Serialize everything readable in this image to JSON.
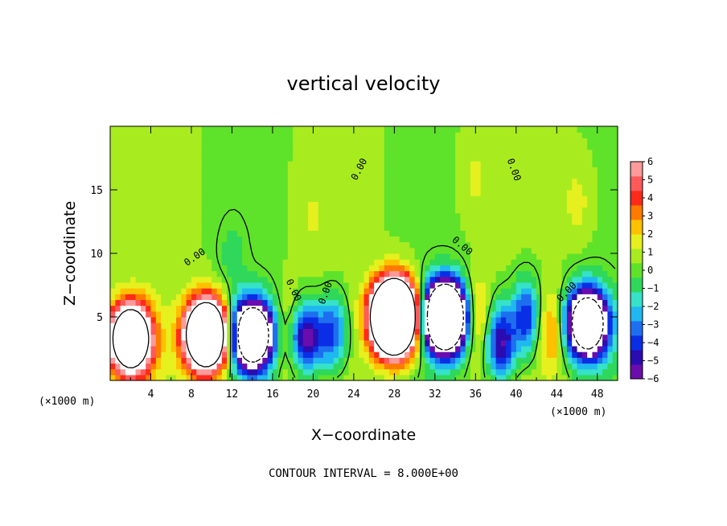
{
  "chart_data": {
    "type": "heatmap",
    "title": "vertical velocity",
    "xlabel": "X−coordinate",
    "ylabel": "Z−coordinate",
    "x_unit_label_left": "(×1000 m)",
    "x_unit_label_right": "(×1000 m)",
    "footer": "CONTOUR INTERVAL = 8.000E+00",
    "xlim": [
      0,
      50
    ],
    "ylim": [
      0,
      20
    ],
    "x_ticks": [
      4,
      8,
      12,
      16,
      20,
      24,
      28,
      32,
      36,
      40,
      44,
      48
    ],
    "x_tick_labels": [
      "4",
      "8",
      "12",
      "16",
      "20",
      "24",
      "28",
      "32",
      "36",
      "40",
      "44",
      "48"
    ],
    "y_ticks": [
      5,
      10,
      15
    ],
    "y_tick_labels": [
      "5",
      "10",
      "15"
    ],
    "contour_label": "0.00",
    "colorbar": {
      "range": [
        -6,
        6
      ],
      "ticks": [
        6,
        5,
        4,
        3,
        2,
        1,
        0,
        -1,
        -2,
        -3,
        -4,
        -5,
        -6
      ],
      "tick_labels": [
        "6",
        "5",
        "4",
        "3",
        "2",
        "1",
        "0",
        "−1",
        "−2",
        "−3",
        "−4",
        "−5",
        "−6"
      ],
      "colors": [
        "#6a0dad",
        "#2a0cb0",
        "#0a2ee6",
        "#1e6ff0",
        "#1fb8f0",
        "#36e2c8",
        "#2fd85a",
        "#5fe22a",
        "#a8ec20",
        "#e6f01e",
        "#ffc000",
        "#ff7a00",
        "#ff2a1a",
        "#ff5a5a",
        "#ff9a9a"
      ]
    },
    "features": [
      {
        "x": 2,
        "z": 3.3,
        "w": 16
      },
      {
        "x": 9.5,
        "z": 3.6,
        "w": 20
      },
      {
        "x": 14,
        "z": 3.6,
        "w": -16
      },
      {
        "x": 17.5,
        "z": 3.5,
        "w": 4
      },
      {
        "x": 19,
        "z": 3.4,
        "w": -7
      },
      {
        "x": 22,
        "z": 3.8,
        "w": -4
      },
      {
        "x": 28,
        "z": 5,
        "w": 30
      },
      {
        "x": 33,
        "z": 5,
        "w": -22
      },
      {
        "x": 36,
        "z": 5,
        "w": 3
      },
      {
        "x": 38.5,
        "z": 3,
        "w": -6
      },
      {
        "x": 41,
        "z": 5,
        "w": -5
      },
      {
        "x": 43.5,
        "z": 4,
        "w": 3
      },
      {
        "x": 47,
        "z": 4.5,
        "w": -15
      },
      {
        "x": 46,
        "z": 14,
        "w": 1.2
      },
      {
        "x": 36,
        "z": 16,
        "w": 1.0
      },
      {
        "x": 20,
        "z": 13,
        "w": 0.8
      },
      {
        "x": 12,
        "z": 10,
        "w": -1.0
      }
    ]
  }
}
